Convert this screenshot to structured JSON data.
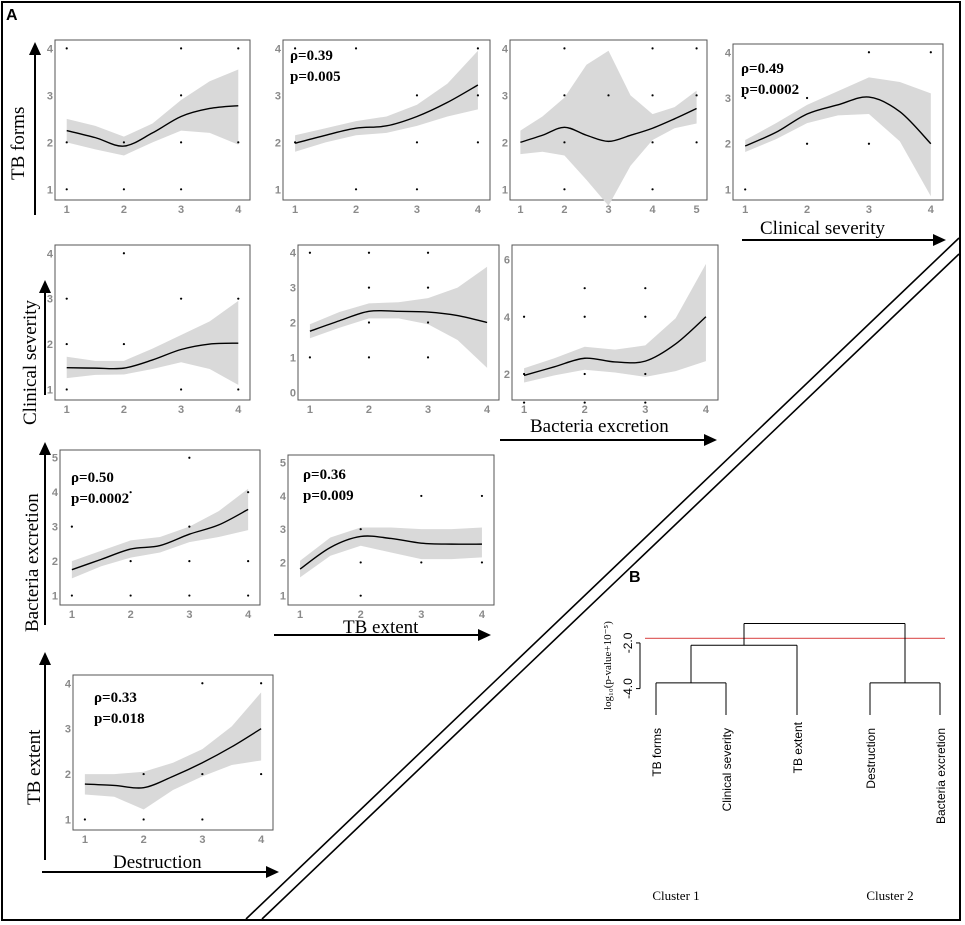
{
  "figure": {
    "panel_a_label": "A",
    "panel_b_label": "B"
  },
  "chart_data": [
    {
      "type": "line",
      "id": "p11",
      "series_name": "TB forms vs Destruction",
      "xticks": [
        "1",
        "2",
        "3",
        "4"
      ],
      "yticks": [
        "1",
        "2",
        "3",
        "4"
      ],
      "xlim": [
        0.9,
        4.1
      ],
      "ylim": [
        0.9,
        4.05
      ],
      "x": [
        1,
        1.5,
        2,
        2.5,
        3,
        3.5,
        4
      ],
      "y": [
        2.25,
        2.1,
        1.92,
        2.2,
        2.55,
        2.72,
        2.78
      ],
      "lower": [
        2.0,
        1.85,
        1.72,
        2.0,
        2.25,
        2.2,
        1.95
      ],
      "upper": [
        2.5,
        2.35,
        2.12,
        2.4,
        2.9,
        3.3,
        3.55
      ],
      "points": [
        [
          1,
          4
        ],
        [
          3,
          4
        ],
        [
          4,
          4
        ],
        [
          3,
          3
        ],
        [
          1,
          2
        ],
        [
          2,
          2
        ],
        [
          3,
          2
        ],
        [
          4,
          2
        ],
        [
          1,
          1
        ],
        [
          2,
          1
        ],
        [
          3,
          1
        ]
      ],
      "stats": []
    },
    {
      "type": "line",
      "id": "p12",
      "series_name": "TB forms vs TB extent",
      "xticks": [
        "1",
        "2",
        "3",
        "4"
      ],
      "yticks": [
        "1",
        "2",
        "3",
        "4"
      ],
      "xlim": [
        0.9,
        4.1
      ],
      "ylim": [
        0.9,
        4.05
      ],
      "x": [
        1,
        1.5,
        2,
        2.5,
        3,
        3.5,
        4
      ],
      "y": [
        1.98,
        2.15,
        2.3,
        2.35,
        2.55,
        2.85,
        3.22
      ],
      "lower": [
        1.8,
        2.0,
        2.15,
        2.2,
        2.35,
        2.55,
        2.7
      ],
      "upper": [
        2.15,
        2.3,
        2.45,
        2.55,
        2.8,
        3.25,
        3.95
      ],
      "points": [
        [
          1,
          4
        ],
        [
          2,
          4
        ],
        [
          4,
          4
        ],
        [
          3,
          3
        ],
        [
          4,
          3
        ],
        [
          1,
          2
        ],
        [
          3,
          2
        ],
        [
          4,
          2
        ],
        [
          2,
          1
        ],
        [
          3,
          1
        ]
      ],
      "stats": [
        "ρ=0.39",
        "p=0.005"
      ]
    },
    {
      "type": "line",
      "id": "p13",
      "series_name": "TB forms vs Bacteria excretion",
      "xticks": [
        "1",
        "2",
        "3",
        "4",
        "5"
      ],
      "yticks": [
        "1",
        "2",
        "3",
        "4"
      ],
      "xlim": [
        0.9,
        5.1
      ],
      "ylim": [
        0.9,
        4.05
      ],
      "x": [
        1,
        1.5,
        2,
        2.5,
        3,
        3.5,
        4,
        4.5,
        5
      ],
      "y": [
        2.0,
        2.15,
        2.32,
        2.15,
        2.02,
        2.15,
        2.3,
        2.5,
        2.72
      ],
      "lower": [
        1.75,
        1.8,
        1.72,
        1.2,
        0.65,
        1.5,
        2.05,
        2.3,
        2.4
      ],
      "upper": [
        2.25,
        2.55,
        2.95,
        3.65,
        3.95,
        3.0,
        2.6,
        2.75,
        3.1
      ],
      "points": [
        [
          2,
          4
        ],
        [
          4,
          4
        ],
        [
          5,
          4
        ],
        [
          2,
          3
        ],
        [
          3,
          3
        ],
        [
          4,
          3
        ],
        [
          5,
          3
        ],
        [
          2,
          2
        ],
        [
          4,
          2
        ],
        [
          5,
          2
        ],
        [
          2,
          1
        ],
        [
          4,
          1
        ]
      ],
      "stats": []
    },
    {
      "type": "line",
      "id": "p14",
      "series_name": "TB forms vs Clinical severity",
      "xticks": [
        "1",
        "2",
        "3",
        "4"
      ],
      "yticks": [
        "1",
        "2",
        "3",
        "4"
      ],
      "xlim": [
        0.9,
        4.1
      ],
      "ylim": [
        0.9,
        4.05
      ],
      "x": [
        1,
        1.5,
        2,
        2.5,
        3,
        3.5,
        4
      ],
      "y": [
        1.95,
        2.25,
        2.65,
        2.85,
        3.02,
        2.7,
        2.0
      ],
      "lower": [
        1.82,
        2.1,
        2.45,
        2.62,
        2.65,
        2.05,
        0.85
      ],
      "upper": [
        2.08,
        2.45,
        2.85,
        3.15,
        3.45,
        3.35,
        3.1
      ],
      "points": [
        [
          3,
          4
        ],
        [
          4,
          4
        ],
        [
          1,
          3
        ],
        [
          2,
          3
        ],
        [
          2,
          2
        ],
        [
          3,
          2
        ],
        [
          1,
          1
        ]
      ],
      "stats": [
        "ρ=0.49",
        "p=0.0002"
      ]
    },
    {
      "type": "line",
      "id": "p21",
      "series_name": "Clinical severity vs Destruction",
      "xticks": [
        "1",
        "2",
        "3",
        "4"
      ],
      "yticks": [
        "1",
        "2",
        "3",
        "4"
      ],
      "xlim": [
        0.9,
        4.1
      ],
      "ylim": [
        0.9,
        4.05
      ],
      "x": [
        1,
        1.5,
        2,
        2.5,
        3,
        3.5,
        4
      ],
      "y": [
        1.48,
        1.47,
        1.47,
        1.65,
        1.88,
        2.0,
        2.02
      ],
      "lower": [
        1.25,
        1.32,
        1.33,
        1.45,
        1.6,
        1.45,
        1.1
      ],
      "upper": [
        1.72,
        1.63,
        1.63,
        1.9,
        2.2,
        2.5,
        2.95
      ],
      "points": [
        [
          2,
          4
        ],
        [
          1,
          3
        ],
        [
          3,
          3
        ],
        [
          4,
          3
        ],
        [
          1,
          2
        ],
        [
          2,
          2
        ],
        [
          1,
          1
        ],
        [
          3,
          1
        ],
        [
          4,
          1
        ]
      ],
      "stats": []
    },
    {
      "type": "line",
      "id": "p22",
      "series_name": "Clinical severity vs TB extent",
      "xticks": [
        "1",
        "2",
        "3",
        "4"
      ],
      "yticks": [
        "0",
        "1",
        "2",
        "3",
        "4"
      ],
      "xlim": [
        0.9,
        4.1
      ],
      "ylim": [
        -0.05,
        4.05
      ],
      "x": [
        1,
        1.5,
        2,
        2.5,
        3,
        3.5,
        4
      ],
      "y": [
        1.75,
        2.05,
        2.32,
        2.32,
        2.3,
        2.2,
        2.0
      ],
      "lower": [
        1.55,
        1.85,
        2.12,
        2.12,
        1.95,
        1.5,
        0.7
      ],
      "upper": [
        1.95,
        2.3,
        2.55,
        2.58,
        2.7,
        3.0,
        3.6
      ],
      "points": [
        [
          1,
          4
        ],
        [
          2,
          4
        ],
        [
          3,
          4
        ],
        [
          2,
          3
        ],
        [
          3,
          3
        ],
        [
          2,
          2
        ],
        [
          3,
          2
        ],
        [
          1,
          1
        ],
        [
          2,
          1
        ],
        [
          3,
          1
        ]
      ],
      "stats": []
    },
    {
      "type": "line",
      "id": "p23",
      "series_name": "Clinical severity vs Bacteria excretion",
      "xticks": [
        "1",
        "2",
        "3",
        "4"
      ],
      "yticks": [
        "2",
        "4",
        "6"
      ],
      "xlim": [
        0.9,
        4.1
      ],
      "ylim": [
        1.3,
        6.3
      ],
      "x": [
        1,
        1.5,
        2,
        2.5,
        3,
        3.5,
        4
      ],
      "y": [
        1.95,
        2.25,
        2.55,
        2.42,
        2.45,
        3.05,
        4.0
      ],
      "lower": [
        1.7,
        1.95,
        2.15,
        2.05,
        1.9,
        2.1,
        2.45
      ],
      "upper": [
        2.2,
        2.55,
        2.95,
        2.85,
        3.0,
        3.95,
        5.85
      ],
      "points": [
        [
          2,
          5
        ],
        [
          3,
          5
        ],
        [
          1,
          4
        ],
        [
          2,
          4
        ],
        [
          3,
          4
        ],
        [
          1,
          2
        ],
        [
          2,
          2
        ],
        [
          3,
          2
        ],
        [
          1,
          1
        ],
        [
          2,
          1
        ],
        [
          3,
          1
        ]
      ],
      "stats": []
    },
    {
      "type": "line",
      "id": "p31",
      "series_name": "Bacteria excretion vs Destruction",
      "xticks": [
        "1",
        "2",
        "3",
        "4"
      ],
      "yticks": [
        "1",
        "2",
        "3",
        "4",
        "5"
      ],
      "xlim": [
        0.9,
        4.1
      ],
      "ylim": [
        0.9,
        5.05
      ],
      "x": [
        1,
        1.5,
        2,
        2.5,
        3,
        3.5,
        4
      ],
      "y": [
        1.75,
        2.05,
        2.35,
        2.45,
        2.78,
        3.05,
        3.5
      ],
      "lower": [
        1.5,
        1.85,
        2.1,
        2.25,
        2.55,
        2.7,
        2.9
      ],
      "upper": [
        2.0,
        2.3,
        2.6,
        2.7,
        3.0,
        3.45,
        4.1
      ],
      "points": [
        [
          3,
          5
        ],
        [
          2,
          4
        ],
        [
          4,
          4
        ],
        [
          1,
          3
        ],
        [
          3,
          3
        ],
        [
          2,
          2
        ],
        [
          3,
          2
        ],
        [
          4,
          2
        ],
        [
          1,
          1
        ],
        [
          2,
          1
        ],
        [
          3,
          1
        ],
        [
          4,
          1
        ]
      ],
      "stats": [
        "ρ=0.50",
        "p=0.0002"
      ]
    },
    {
      "type": "line",
      "id": "p32",
      "series_name": "Bacteria excretion vs TB extent",
      "xticks": [
        "1",
        "2",
        "3",
        "4"
      ],
      "yticks": [
        "1",
        "2",
        "3",
        "4",
        "5"
      ],
      "xlim": [
        0.9,
        4.1
      ],
      "ylim": [
        0.9,
        5.05
      ],
      "x": [
        1,
        1.5,
        2,
        2.5,
        3,
        3.5,
        4
      ],
      "y": [
        1.8,
        2.45,
        2.78,
        2.72,
        2.58,
        2.55,
        2.55
      ],
      "lower": [
        1.55,
        2.2,
        2.5,
        2.3,
        2.1,
        2.1,
        2.15
      ],
      "upper": [
        2.05,
        2.75,
        3.05,
        3.05,
        3.0,
        3.0,
        3.05
      ],
      "points": [
        [
          3,
          4
        ],
        [
          4,
          4
        ],
        [
          2,
          3
        ],
        [
          2,
          2
        ],
        [
          3,
          2
        ],
        [
          4,
          2
        ],
        [
          2,
          1
        ]
      ],
      "stats": [
        "ρ=0.36",
        "p=0.009"
      ]
    },
    {
      "type": "line",
      "id": "p41",
      "series_name": "TB extent vs Destruction",
      "xticks": [
        "1",
        "2",
        "3",
        "4"
      ],
      "yticks": [
        "1",
        "2",
        "3",
        "4"
      ],
      "xlim": [
        0.9,
        4.1
      ],
      "ylim": [
        0.9,
        4.05
      ],
      "x": [
        1,
        1.5,
        2,
        2.5,
        3,
        3.5,
        4
      ],
      "y": [
        1.78,
        1.75,
        1.7,
        1.95,
        2.25,
        2.6,
        3.0
      ],
      "lower": [
        1.55,
        1.5,
        1.22,
        1.65,
        1.95,
        2.2,
        2.3
      ],
      "upper": [
        2.0,
        2.0,
        2.05,
        2.25,
        2.55,
        3.05,
        3.8
      ],
      "points": [
        [
          3,
          4
        ],
        [
          4,
          4
        ],
        [
          2,
          2
        ],
        [
          3,
          2
        ],
        [
          4,
          2
        ],
        [
          1,
          1
        ],
        [
          2,
          1
        ],
        [
          3,
          1
        ]
      ],
      "stats": [
        "ρ=0.33",
        "p=0.018"
      ]
    },
    {
      "type": "dendrogram",
      "id": "dendro",
      "ylabel": "log₁₀(p-value+10⁻⁵)",
      "yticks": [
        "-2.0",
        "-4.0"
      ],
      "ylim": [
        -4.5,
        0.1
      ],
      "threshold": -1.8,
      "leaves": [
        "TB forms",
        "Clinical severity",
        "TB extent",
        "Destruction",
        "Bacteria excretion"
      ],
      "merges": [
        {
          "left": 0,
          "right": 1,
          "height": -3.75
        },
        {
          "left": 3,
          "right": 4,
          "height": -3.75
        },
        {
          "left": 2,
          "right": 5,
          "height": -2.1
        },
        {
          "left": 6,
          "right": 7,
          "height": -1.15
        }
      ],
      "clusters": [
        "Cluster 1",
        "Cluster 2"
      ],
      "colors": {
        "threshold": "#e06666",
        "lines": "#000000"
      }
    }
  ],
  "axis_labels": {
    "tb_forms": "TB forms",
    "clinical_severity_left": "Clinical severity",
    "bacteria_excretion_left": "Bacteria excretion",
    "tb_extent_left": "TB extent",
    "clinical_severity_bottom": "Clinical severity",
    "bacteria_excretion_bottom": "Bacteria excretion",
    "tb_extent_bottom": "TB extent",
    "destruction_bottom": "Destruction"
  },
  "colors": {
    "band": "#d9d9d9",
    "curve": "#000000",
    "tick": "#8a8a8a"
  }
}
